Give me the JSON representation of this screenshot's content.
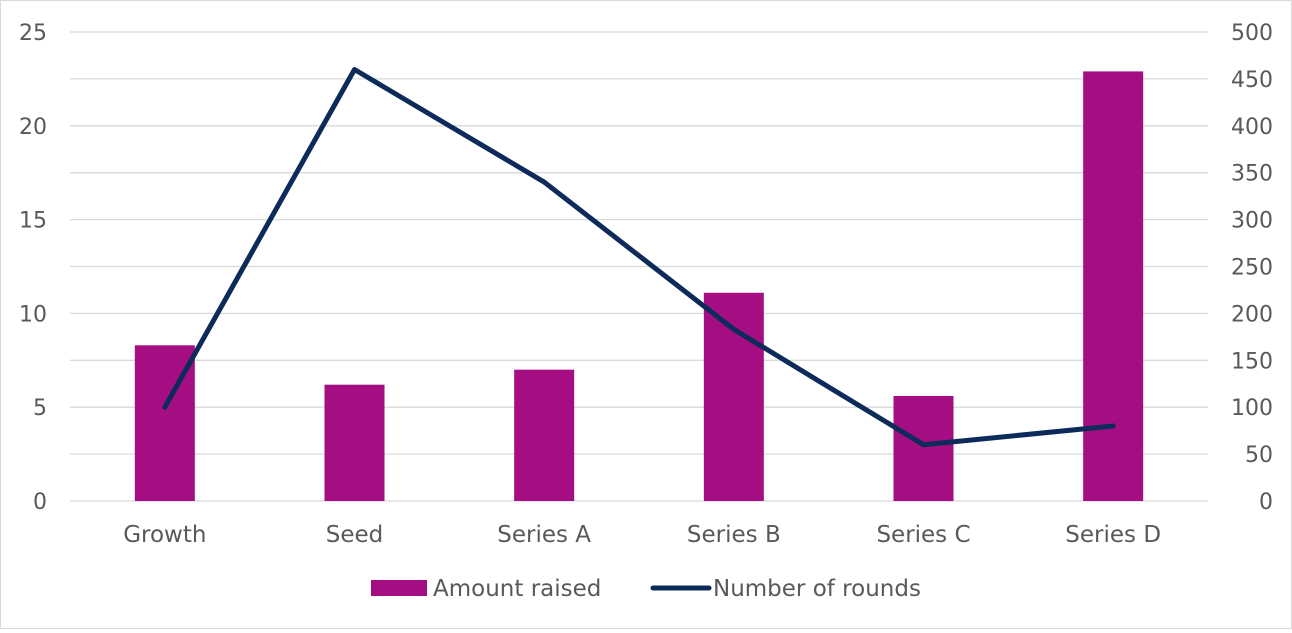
{
  "chart_data": {
    "type": "bar",
    "categories": [
      "Growth",
      "Seed",
      "Series A",
      "Series B",
      "Series C",
      "Series D"
    ],
    "series": [
      {
        "name": "Amount raised",
        "kind": "bar",
        "axis": "left",
        "color": "#a50e82",
        "values": [
          8.3,
          6.2,
          7.0,
          11.1,
          5.6,
          22.9
        ]
      },
      {
        "name": "Number of rounds",
        "kind": "line",
        "axis": "right",
        "color": "#0d2b5a",
        "values": [
          100,
          460,
          340,
          183,
          60,
          80
        ]
      }
    ],
    "y_left": {
      "min": 0,
      "max": 25,
      "step": 5,
      "ticks": [
        "0",
        "5",
        "10",
        "15",
        "20",
        "25"
      ]
    },
    "y_right": {
      "min": 0,
      "max": 500,
      "step": 50,
      "ticks": [
        "0",
        "50",
        "100",
        "150",
        "200",
        "250",
        "300",
        "350",
        "400",
        "450",
        "500"
      ]
    },
    "grid": true,
    "legend_position": "bottom",
    "gridline_color": "#d9d9d9",
    "axis_text_color": "#595959"
  }
}
